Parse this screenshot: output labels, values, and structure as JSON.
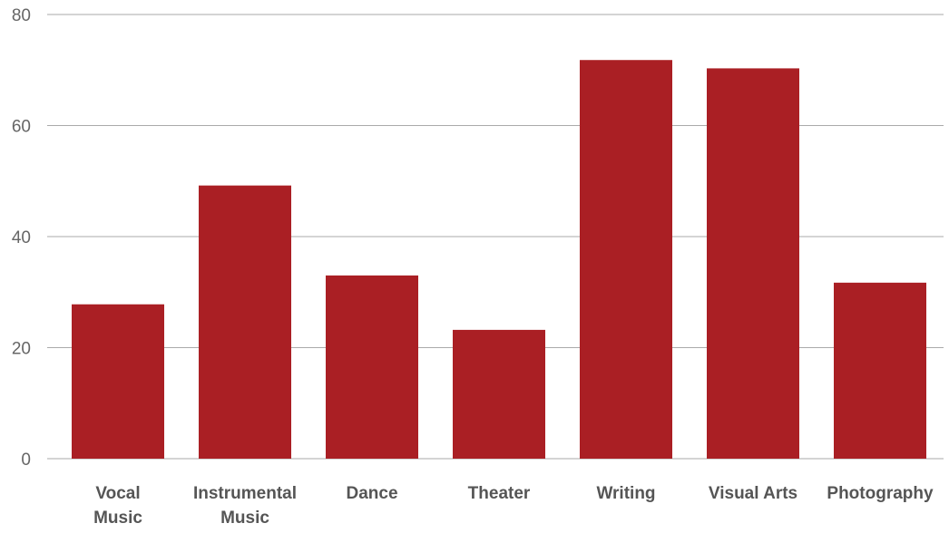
{
  "chart_data": {
    "type": "bar",
    "title": "",
    "xlabel": "",
    "ylabel": "",
    "categories": [
      [
        "Vocal",
        "Music"
      ],
      [
        "Instrumental",
        "Music"
      ],
      [
        "Dance"
      ],
      [
        "Theater"
      ],
      [
        "Writing"
      ],
      [
        "Visual Arts"
      ],
      [
        "Photography"
      ]
    ],
    "values": [
      27.8,
      49.2,
      33.0,
      23.2,
      71.8,
      70.3,
      31.7
    ],
    "ylim": [
      0,
      80
    ],
    "yticks": [
      "0",
      "20",
      "40",
      "60",
      "80"
    ],
    "grid": true,
    "legend": "none",
    "colors": {
      "bar": "#aa1f24",
      "grid": "#aaaaaa"
    }
  }
}
